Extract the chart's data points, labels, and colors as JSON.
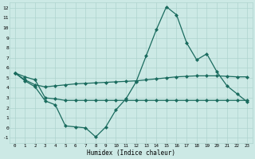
{
  "x": [
    0,
    1,
    2,
    3,
    4,
    5,
    6,
    7,
    8,
    9,
    10,
    11,
    12,
    13,
    14,
    15,
    16,
    17,
    18,
    19,
    20,
    21,
    22,
    23
  ],
  "line1": [
    5.5,
    4.7,
    4.1,
    2.7,
    2.3,
    0.2,
    0.1,
    0.0,
    -0.9,
    0.1,
    1.8,
    2.9,
    4.6,
    7.2,
    9.8,
    12.1,
    11.3,
    8.5,
    6.8,
    7.4,
    5.6,
    4.2,
    3.4,
    2.6
  ],
  "line2": [
    5.5,
    4.8,
    4.3,
    4.1,
    4.2,
    4.3,
    4.4,
    4.45,
    4.5,
    4.55,
    4.6,
    4.65,
    4.7,
    4.8,
    4.9,
    5.0,
    5.1,
    5.15,
    5.2,
    5.2,
    5.2,
    5.15,
    5.1,
    5.1
  ],
  "line3": [
    5.5,
    5.1,
    4.8,
    3.0,
    2.9,
    2.75,
    2.75,
    2.75,
    2.75,
    2.75,
    2.75,
    2.75,
    2.75,
    2.75,
    2.75,
    2.75,
    2.75,
    2.75,
    2.75,
    2.75,
    2.75,
    2.75,
    2.75,
    2.75
  ],
  "line_color": "#1a6b5e",
  "bg_color": "#cce9e5",
  "grid_color": "#aed4cf",
  "xlabel": "Humidex (Indice chaleur)",
  "xlim": [
    -0.5,
    23.5
  ],
  "ylim": [
    -1.5,
    12.5
  ],
  "yticks": [
    -1,
    0,
    1,
    2,
    3,
    4,
    5,
    6,
    7,
    8,
    9,
    10,
    11,
    12
  ],
  "xticks": [
    0,
    1,
    2,
    3,
    4,
    5,
    6,
    7,
    8,
    9,
    10,
    11,
    12,
    13,
    14,
    15,
    16,
    17,
    18,
    19,
    20,
    21,
    22,
    23
  ],
  "marker": "D",
  "markersize": 2.0,
  "linewidth": 0.9
}
